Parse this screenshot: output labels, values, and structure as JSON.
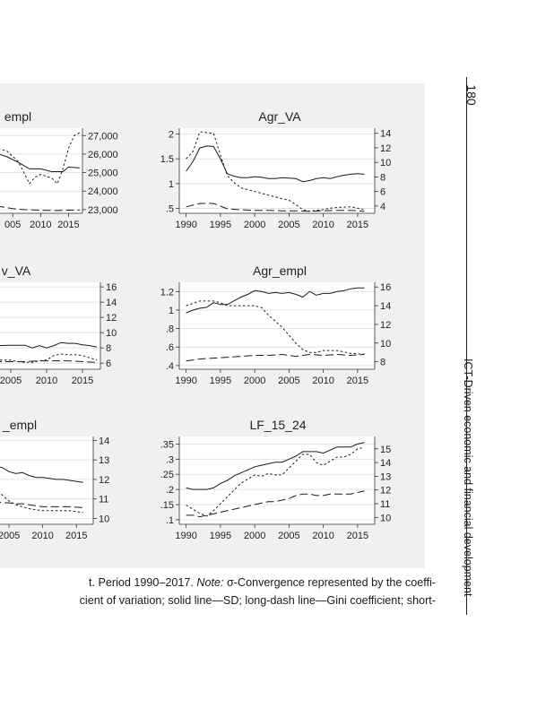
{
  "page": {
    "number": "180",
    "running_head": "ICT-Driven economic and financial development"
  },
  "caption": {
    "line1_pre": "t. Period 1990–2017. ",
    "line1_note": "Note:",
    "line1_post": " σ-Convergence represented by the coeffi-",
    "line2": "cient of variation; solid line—SD; long-dash line—Gini coefficient; short-"
  },
  "chart_data": [
    {
      "id": "empl",
      "type": "line",
      "title": "empl",
      "x_ticks": [
        "005",
        "2010",
        "2015"
      ],
      "x_tick_values": [
        2005,
        2010,
        2015
      ],
      "xlim": [
        1999.5,
        2017.5
      ],
      "left_axis": null,
      "right_axis": {
        "ticks": [
          "23,000",
          "24,000",
          "25,000",
          "26,000",
          "27,000"
        ],
        "values": [
          23000,
          24000,
          25000,
          26000,
          27000
        ],
        "ylim": [
          22800,
          27400
        ]
      },
      "series": [
        {
          "style": "solid",
          "axis": "right",
          "x": [
            2000,
            2002,
            2004,
            2006,
            2008,
            2010,
            2012,
            2014,
            2015,
            2017
          ],
          "y": [
            26300,
            26050,
            25850,
            25550,
            25200,
            25200,
            25050,
            25050,
            25300,
            25250
          ]
        },
        {
          "style": "long-dash",
          "axis": "right",
          "x": [
            2000,
            2003,
            2005,
            2007,
            2009,
            2011,
            2013,
            2015,
            2017
          ],
          "y": [
            23300,
            23150,
            23050,
            23000,
            22980,
            22960,
            22950,
            22970,
            22980
          ]
        },
        {
          "style": "short-dash",
          "axis": "right",
          "x": [
            2000,
            2002,
            2004,
            2006,
            2007,
            2008,
            2009,
            2010,
            2012,
            2013,
            2014,
            2015,
            2016,
            2017
          ],
          "y": [
            26400,
            26350,
            26150,
            25600,
            25000,
            24400,
            24750,
            24900,
            24700,
            24400,
            25200,
            26300,
            27000,
            27150
          ]
        }
      ]
    },
    {
      "id": "agr_va",
      "type": "line",
      "title": "Agr_VA",
      "x_ticks": [
        "1990",
        "1995",
        "2000",
        "2005",
        "2010",
        "2015"
      ],
      "x_tick_values": [
        1990,
        1995,
        2000,
        2005,
        2010,
        2015
      ],
      "xlim": [
        1989,
        2017.5
      ],
      "left_axis": {
        "ticks": [
          ".5",
          "1",
          "1.5",
          "2"
        ],
        "values": [
          0.5,
          1,
          1.5,
          2
        ],
        "ylim": [
          0.4,
          2.12
        ]
      },
      "right_axis": {
        "ticks": [
          "4",
          "6",
          "8",
          "10",
          "12",
          "14"
        ],
        "values": [
          4,
          6,
          8,
          10,
          12,
          14
        ],
        "ylim": [
          3,
          14.7
        ]
      },
      "series": [
        {
          "style": "solid",
          "axis": "left",
          "x": [
            1990,
            1991,
            1992,
            1993,
            1994,
            1995,
            1996,
            1997,
            1998,
            1999,
            2000,
            2001,
            2002,
            2003,
            2004,
            2005,
            2006,
            2007,
            2008,
            2009,
            2010,
            2011,
            2012,
            2013,
            2014,
            2015,
            2016
          ],
          "y": [
            1.25,
            1.45,
            1.72,
            1.76,
            1.75,
            1.5,
            1.2,
            1.15,
            1.12,
            1.12,
            1.14,
            1.13,
            1.1,
            1.1,
            1.12,
            1.11,
            1.1,
            1.04,
            1.06,
            1.1,
            1.12,
            1.1,
            1.14,
            1.17,
            1.19,
            1.2,
            1.19
          ]
        },
        {
          "style": "long-dash",
          "axis": "left",
          "x": [
            1990,
            1992,
            1994,
            1996,
            1998,
            2000,
            2002,
            2004,
            2006,
            2008,
            2010,
            2012,
            2014,
            2016
          ],
          "y": [
            0.53,
            0.6,
            0.6,
            0.49,
            0.47,
            0.46,
            0.46,
            0.45,
            0.45,
            0.44,
            0.45,
            0.46,
            0.46,
            0.44
          ]
        },
        {
          "style": "short-dash",
          "axis": "right",
          "x": [
            1990,
            1991,
            1992,
            1993,
            1994,
            1995,
            1996,
            1997,
            1998,
            2000,
            2002,
            2004,
            2005,
            2006,
            2007,
            2008,
            2009,
            2010,
            2011,
            2012,
            2014,
            2016
          ],
          "y": [
            10.5,
            11.5,
            14.2,
            14.1,
            14.0,
            11.0,
            8.2,
            7.2,
            6.5,
            6.0,
            5.5,
            5.0,
            4.8,
            4.2,
            3.5,
            3.3,
            3.4,
            3.5,
            3.7,
            3.8,
            3.9,
            3.5
          ]
        }
      ]
    },
    {
      "id": "v_va",
      "type": "line",
      "title": "v_VA",
      "x_ticks": [
        "2005",
        "2010",
        "2015"
      ],
      "x_tick_values": [
        2005,
        2010,
        2015
      ],
      "xlim": [
        2001,
        2017.5
      ],
      "left_axis": null,
      "right_axis": {
        "ticks": [
          "6",
          "8",
          "10",
          "12",
          "14",
          "16"
        ],
        "values": [
          6,
          8,
          10,
          12,
          14,
          16
        ],
        "ylim": [
          5.2,
          16.6
        ]
      },
      "series": [
        {
          "style": "solid",
          "axis": "right",
          "x": [
            2001,
            2003,
            2005,
            2007,
            2008,
            2009,
            2010,
            2011,
            2012,
            2013,
            2014,
            2015,
            2016,
            2017
          ],
          "y": [
            8.3,
            8.3,
            8.35,
            8.35,
            8.0,
            8.3,
            8.0,
            8.3,
            8.7,
            8.6,
            8.6,
            8.4,
            8.3,
            8.1
          ]
        },
        {
          "style": "long-dash",
          "axis": "right",
          "x": [
            2001,
            2003,
            2005,
            2007,
            2009,
            2011,
            2013,
            2015,
            2017
          ],
          "y": [
            6.1,
            6.2,
            6.2,
            6.2,
            6.3,
            6.3,
            6.3,
            6.2,
            6.1
          ]
        },
        {
          "style": "short-dash",
          "axis": "right",
          "x": [
            2001,
            2003,
            2005,
            2006,
            2007,
            2008,
            2009,
            2010,
            2011,
            2012,
            2013,
            2014,
            2015,
            2016,
            2017
          ],
          "y": [
            6.3,
            6.4,
            6.4,
            6.2,
            6.1,
            6.1,
            6.3,
            6.4,
            7.0,
            7.2,
            7.1,
            7.1,
            7.0,
            6.7,
            6.4
          ]
        }
      ]
    },
    {
      "id": "agr_empl",
      "type": "line",
      "title": "Agr_empl",
      "x_ticks": [
        "1990",
        "1995",
        "2000",
        "2005",
        "2010",
        "2015"
      ],
      "x_tick_values": [
        1990,
        1995,
        2000,
        2005,
        2010,
        2015
      ],
      "xlim": [
        1989,
        2017.5
      ],
      "left_axis": {
        "ticks": [
          ".4",
          ".6",
          ".8",
          "1",
          "1.2"
        ],
        "values": [
          0.4,
          0.6,
          0.8,
          1,
          1.2
        ],
        "ylim": [
          0.36,
          1.3
        ]
      },
      "right_axis": {
        "ticks": [
          "8",
          "10",
          "12",
          "14",
          "16"
        ],
        "values": [
          8,
          10,
          12,
          14,
          16
        ],
        "ylim": [
          7.2,
          16.5
        ]
      },
      "series": [
        {
          "style": "solid",
          "axis": "left",
          "x": [
            1990,
            1991,
            1992,
            1993,
            1994,
            1995,
            1996,
            1997,
            1998,
            1999,
            2000,
            2001,
            2002,
            2003,
            2004,
            2005,
            2006,
            2007,
            2008,
            2009,
            2010,
            2011,
            2012,
            2013,
            2014,
            2015,
            2016
          ],
          "y": [
            0.97,
            1.0,
            1.02,
            1.03,
            1.08,
            1.06,
            1.06,
            1.1,
            1.14,
            1.17,
            1.21,
            1.2,
            1.18,
            1.19,
            1.18,
            1.19,
            1.17,
            1.14,
            1.2,
            1.16,
            1.18,
            1.18,
            1.2,
            1.21,
            1.23,
            1.24,
            1.24
          ]
        },
        {
          "style": "long-dash",
          "axis": "left",
          "x": [
            1990,
            1992,
            1994,
            1996,
            1998,
            2000,
            2002,
            2004,
            2006,
            2008,
            2010,
            2012,
            2014,
            2016
          ],
          "y": [
            0.45,
            0.47,
            0.48,
            0.49,
            0.5,
            0.51,
            0.51,
            0.52,
            0.5,
            0.52,
            0.51,
            0.52,
            0.51,
            0.52
          ]
        },
        {
          "style": "short-dash",
          "axis": "right",
          "x": [
            1990,
            1992,
            1994,
            1995,
            1996,
            1998,
            2000,
            2001,
            2002,
            2004,
            2006,
            2007,
            2008,
            2009,
            2010,
            2012,
            2014,
            2016
          ],
          "y": [
            14.0,
            14.5,
            14.5,
            14.3,
            14.0,
            14.0,
            14.0,
            13.8,
            13.0,
            11.7,
            10.0,
            9.3,
            9.0,
            9.0,
            9.2,
            9.2,
            8.9,
            8.8
          ]
        }
      ]
    },
    {
      "id": "lf_empl",
      "type": "line",
      "title": "_empl",
      "x_ticks": [
        "2005",
        "2010",
        "2015"
      ],
      "x_tick_values": [
        2005,
        2010,
        2015
      ],
      "xlim": [
        2001,
        2017.5
      ],
      "left_axis": null,
      "right_axis": {
        "ticks": [
          "10",
          "11",
          "12",
          "13",
          "14"
        ],
        "values": [
          10,
          11,
          12,
          13,
          14
        ],
        "ylim": [
          9.7,
          14.2
        ]
      },
      "series": [
        {
          "style": "solid",
          "axis": "right",
          "x": [
            2001,
            2002,
            2003,
            2004,
            2005,
            2006,
            2007,
            2008,
            2009,
            2010,
            2011,
            2012,
            2013,
            2014,
            2015,
            2016
          ],
          "y": [
            12.9,
            12.8,
            12.7,
            12.6,
            12.4,
            12.3,
            12.35,
            12.2,
            12.1,
            12.1,
            12.05,
            12.0,
            12.0,
            11.95,
            11.9,
            11.85
          ]
        },
        {
          "style": "long-dash",
          "axis": "right",
          "x": [
            2001,
            2002,
            2003,
            2004,
            2005,
            2006,
            2007,
            2008,
            2010,
            2012,
            2014,
            2016
          ],
          "y": [
            11.1,
            11.0,
            10.9,
            10.8,
            10.8,
            10.75,
            10.75,
            10.7,
            10.6,
            10.6,
            10.6,
            10.55
          ]
        },
        {
          "style": "short-dash",
          "axis": "right",
          "x": [
            2001,
            2002,
            2003,
            2004,
            2005,
            2006,
            2007,
            2008,
            2010,
            2012,
            2014,
            2016
          ],
          "y": [
            12.2,
            11.8,
            11.5,
            11.2,
            10.9,
            10.7,
            10.6,
            10.5,
            10.4,
            10.4,
            10.4,
            10.3
          ]
        }
      ]
    },
    {
      "id": "lf_15_24",
      "type": "line",
      "title": "LF_15_24",
      "x_ticks": [
        "1990",
        "1995",
        "2000",
        "2005",
        "2010",
        "2015"
      ],
      "x_tick_values": [
        1990,
        1995,
        2000,
        2005,
        2010,
        2015
      ],
      "xlim": [
        1989,
        2017.5
      ],
      "left_axis": {
        "ticks": [
          ".1",
          ".15",
          ".2",
          ".25",
          ".3",
          ".35"
        ],
        "values": [
          0.1,
          0.15,
          0.2,
          0.25,
          0.3,
          0.35
        ],
        "ylim": [
          0.085,
          0.375
        ]
      },
      "right_axis": {
        "ticks": [
          "10",
          "11",
          "12",
          "13",
          "14",
          "15"
        ],
        "values": [
          10,
          11,
          12,
          13,
          14,
          15
        ],
        "ylim": [
          9.5,
          15.9
        ]
      },
      "series": [
        {
          "style": "solid",
          "axis": "left",
          "x": [
            1990,
            1991,
            1992,
            1993,
            1994,
            1995,
            1996,
            1997,
            1998,
            1999,
            2000,
            2001,
            2002,
            2003,
            2004,
            2005,
            2006,
            2007,
            2008,
            2009,
            2010,
            2011,
            2012,
            2013,
            2014,
            2015,
            2016
          ],
          "y": [
            0.205,
            0.2,
            0.2,
            0.2,
            0.205,
            0.22,
            0.23,
            0.245,
            0.255,
            0.265,
            0.275,
            0.28,
            0.285,
            0.29,
            0.29,
            0.3,
            0.31,
            0.325,
            0.325,
            0.325,
            0.32,
            0.33,
            0.34,
            0.34,
            0.34,
            0.35,
            0.355
          ]
        },
        {
          "style": "long-dash",
          "axis": "left",
          "x": [
            1990,
            1991,
            1992,
            1993,
            1994,
            1995,
            1996,
            1997,
            1998,
            1999,
            2000,
            2001,
            2002,
            2003,
            2004,
            2005,
            2006,
            2007,
            2008,
            2009,
            2010,
            2011,
            2012,
            2013,
            2014,
            2015,
            2016
          ],
          "y": [
            0.115,
            0.115,
            0.11,
            0.115,
            0.12,
            0.125,
            0.13,
            0.135,
            0.14,
            0.145,
            0.15,
            0.155,
            0.16,
            0.16,
            0.165,
            0.17,
            0.18,
            0.185,
            0.185,
            0.18,
            0.18,
            0.185,
            0.185,
            0.185,
            0.185,
            0.19,
            0.195
          ]
        },
        {
          "style": "short-dash",
          "axis": "right",
          "x": [
            1990,
            1991,
            1992,
            1993,
            1994,
            1995,
            1996,
            1997,
            1998,
            1999,
            2000,
            2001,
            2002,
            2003,
            2004,
            2005,
            2006,
            2007,
            2008,
            2009,
            2010,
            2011,
            2012,
            2013,
            2014,
            2015,
            2016
          ],
          "y": [
            10.9,
            10.6,
            10.3,
            10.1,
            10.5,
            11.0,
            11.5,
            12.0,
            12.5,
            12.8,
            13.1,
            13.0,
            13.2,
            13.1,
            13.1,
            13.6,
            14.1,
            14.6,
            14.6,
            14.0,
            13.8,
            14.1,
            14.4,
            14.4,
            14.6,
            15.0,
            15.1
          ]
        }
      ]
    }
  ]
}
